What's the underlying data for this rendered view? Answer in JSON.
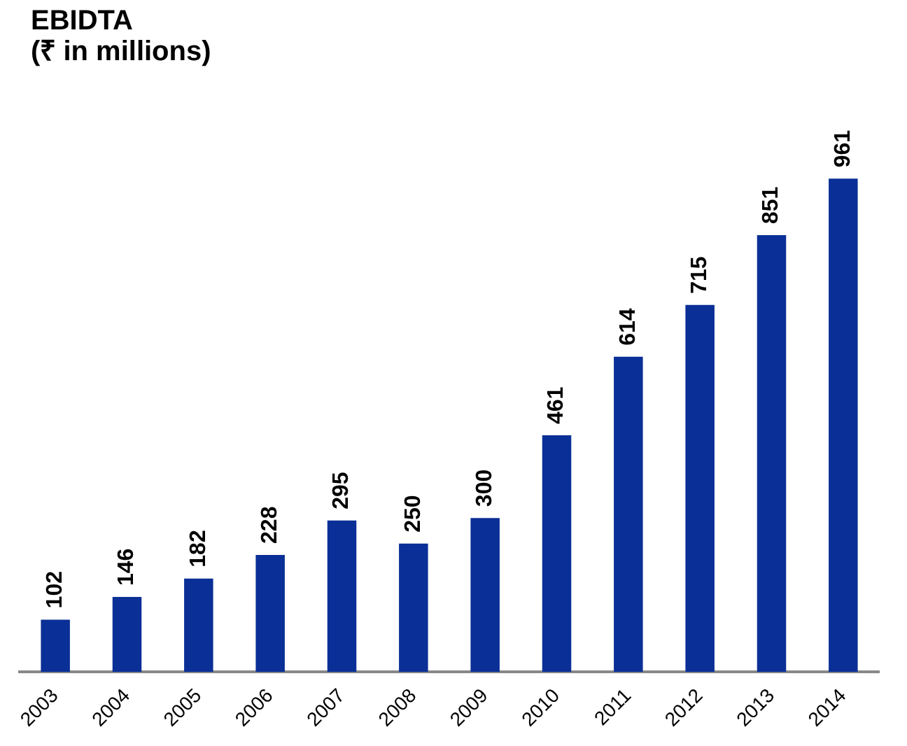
{
  "chart_data": {
    "type": "bar",
    "title": "EBIDTA",
    "subtitle": "(₹ in millions)",
    "categories": [
      "2003",
      "2004",
      "2005",
      "2006",
      "2007",
      "2008",
      "2009",
      "2010",
      "2011",
      "2012",
      "2013",
      "2014"
    ],
    "values": [
      102,
      146,
      182,
      228,
      295,
      250,
      300,
      461,
      614,
      715,
      851,
      961
    ],
    "color": "#0a2f96",
    "data_labels": true,
    "grid": false,
    "legend": false
  }
}
